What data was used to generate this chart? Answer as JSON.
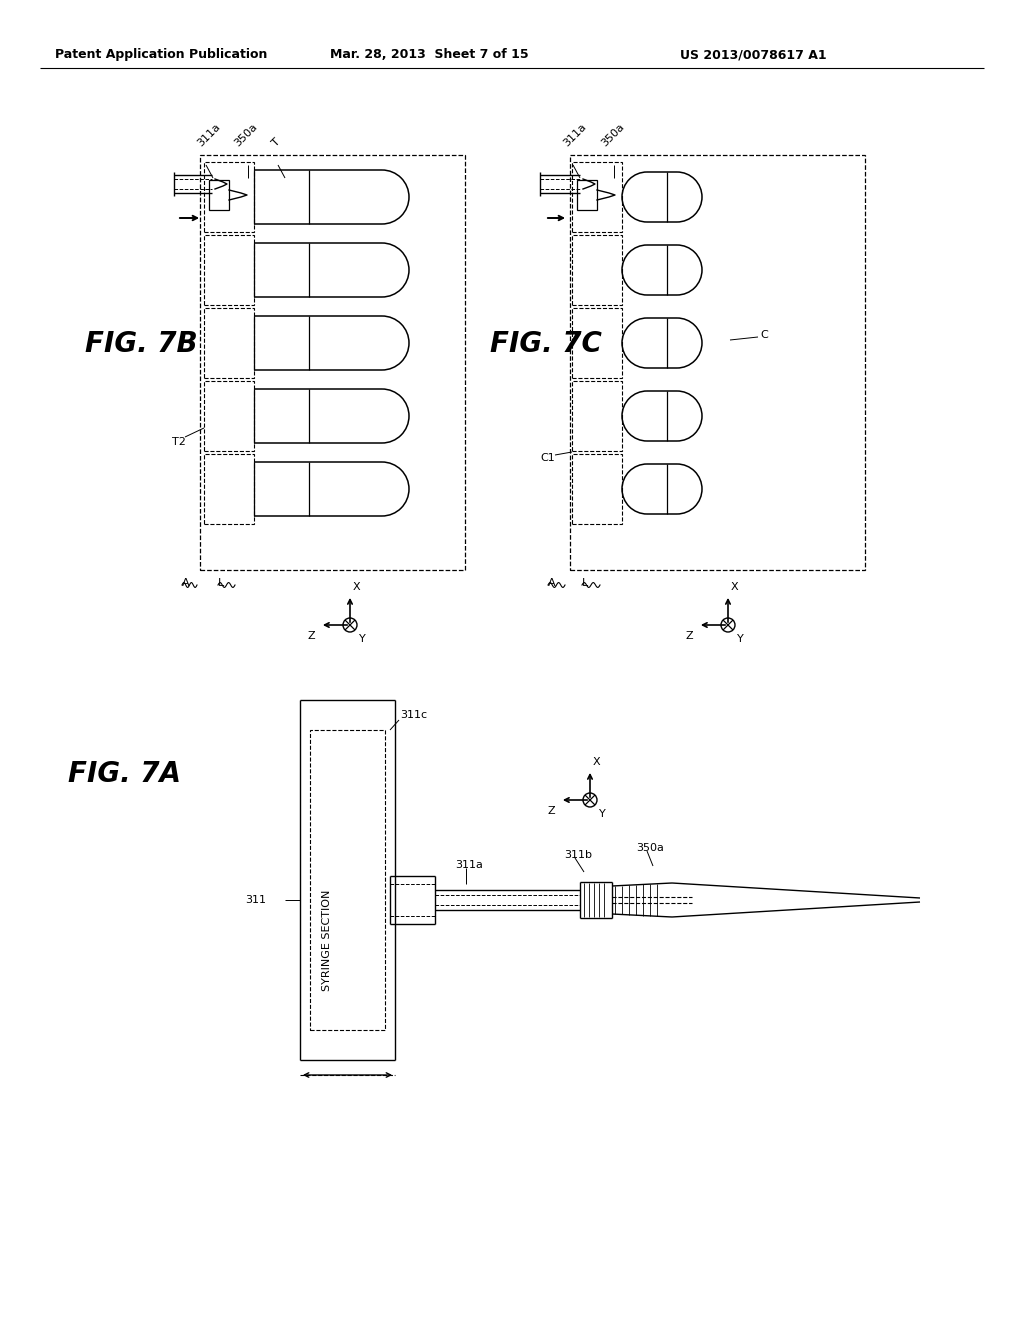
{
  "bg_color": "#ffffff",
  "header_left": "Patent Application Publication",
  "header_mid": "Mar. 28, 2013  Sheet 7 of 15",
  "header_right": "US 2013/0078617 A1",
  "fig_7b_label": "FIG. 7B",
  "fig_7c_label": "FIG. 7C",
  "fig_7a_label": "FIG. 7A"
}
